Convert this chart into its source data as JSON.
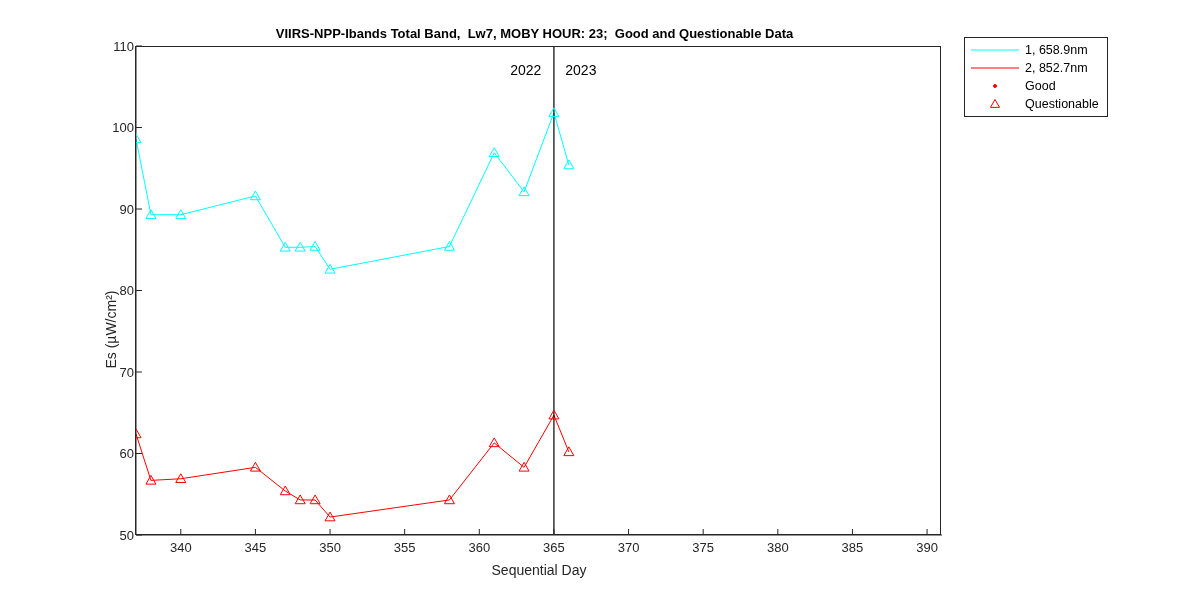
{
  "chart_data": {
    "type": "line",
    "title": "VIIRS-NPP-Ibands Total Band,  Lw7, MOBY HOUR: 23;  Good and Questionable Data",
    "xlabel": "Sequential Day",
    "ylabel": "Es (µW/cm²)",
    "x": [
      337,
      338,
      340,
      345,
      347,
      348,
      349,
      350,
      358,
      361,
      363,
      365,
      366
    ],
    "series": [
      {
        "name": "1, 658.9nm",
        "color": "#00ffff",
        "values": [
          98.6,
          89.3,
          89.3,
          91.6,
          85.3,
          85.3,
          85.4,
          82.6,
          85.4,
          96.9,
          92.1,
          101.8,
          95.4
        ]
      },
      {
        "name": "2, 852.7nm",
        "color": "#ff0000",
        "values": [
          62.4,
          56.7,
          56.9,
          58.3,
          55.4,
          54.3,
          54.3,
          52.2,
          54.3,
          61.3,
          58.3,
          64.7,
          60.2
        ]
      },
      {
        "name": "Good",
        "type": "scatter",
        "color": "#ff0000",
        "marker": "circle",
        "values": [
          null,
          null,
          null,
          null,
          null,
          null,
          null,
          null,
          null,
          null,
          null,
          null,
          null
        ]
      },
      {
        "name": "Questionable",
        "type": "scatter",
        "color": "#ff0000",
        "marker": "triangle",
        "values": [
          null,
          null,
          null,
          null,
          null,
          null,
          null,
          null,
          null,
          null,
          null,
          null,
          null
        ]
      }
    ],
    "marker": "triangle",
    "line_style": "solid",
    "grid": false,
    "legend": "top right",
    "xlim": [
      337,
      391
    ],
    "xticks": [
      340,
      345,
      350,
      355,
      360,
      365,
      370,
      375,
      380,
      385,
      390
    ],
    "ylim": [
      50,
      110
    ],
    "yticks": [
      50,
      60,
      70,
      80,
      90,
      100,
      110
    ],
    "ref_lines": [
      {
        "axis": "x",
        "value": 365,
        "color": "#000000"
      }
    ],
    "annotations": [
      "2022",
      "2023"
    ]
  }
}
